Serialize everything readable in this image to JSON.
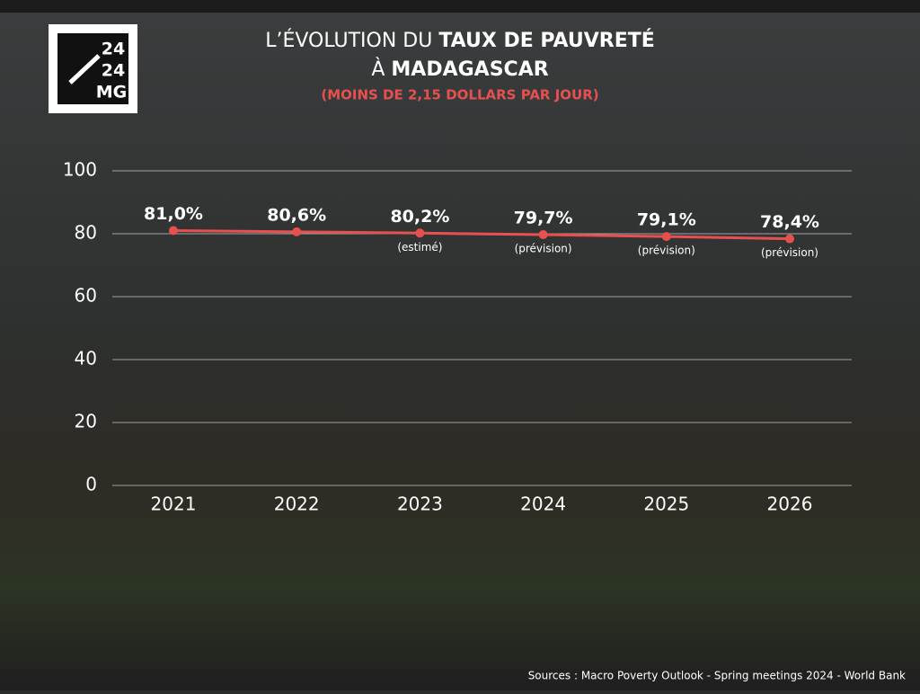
{
  "logo": [
    "24",
    "24",
    "MG"
  ],
  "chart_data": {
    "type": "line",
    "title": [
      [
        {
          "text": "L’ÉVOLUTION DU",
          "bold": false
        },
        {
          "text": "TAUX DE PAUVRETÉ",
          "bold": true
        }
      ],
      [
        {
          "text": "À",
          "bold": false
        },
        {
          "text": "MADAGASCAR",
          "bold": true
        }
      ]
    ],
    "subtitle": "(MOINS DE 2,15 DOLLARS PAR JOUR)",
    "categories": [
      "2021",
      "2022",
      "2023",
      "2024",
      "2025",
      "2026"
    ],
    "series": [
      {
        "name": "Taux de pauvreté",
        "color": "#e8504f",
        "values": [
          81.0,
          80.6,
          80.2,
          79.7,
          79.1,
          78.4
        ],
        "value_labels": [
          "81,0%",
          "80,6%",
          "80,2%",
          "79,7%",
          "79,1%",
          "78,4%"
        ],
        "point_notes": [
          null,
          null,
          "(estimé)",
          "(prévision)",
          "(prévision)",
          "(prévision)"
        ]
      }
    ],
    "ylim": [
      0,
      100
    ],
    "yticks": [
      0,
      20,
      40,
      60,
      80,
      100
    ],
    "grid": true,
    "source": "Sources : Macro Poverty Outlook - Spring meetings 2024 - World Bank"
  }
}
